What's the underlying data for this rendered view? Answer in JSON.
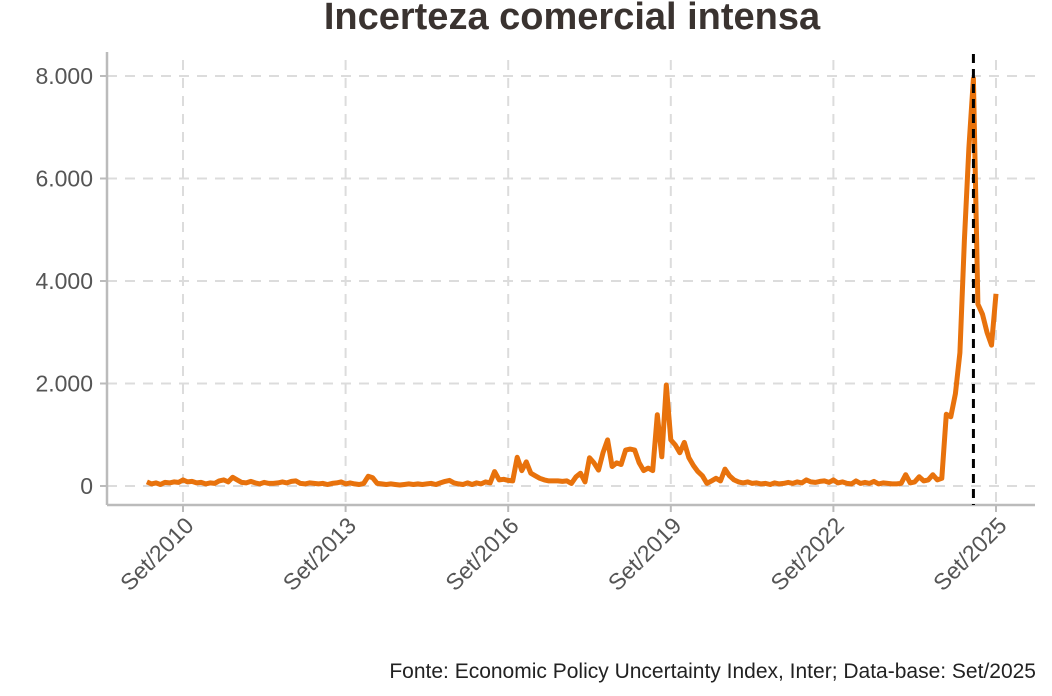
{
  "chart_data": {
    "type": "line",
    "title": "Incerteza comercial intensa",
    "caption": "Fonte: Economic Policy Uncertainty Index, Inter; Data-base: Set/2025",
    "xlabel": "",
    "ylabel": "",
    "x_start": "2010-01",
    "x_end": "2025-09",
    "frequency": "monthly",
    "ylim": [
      0,
      8000
    ],
    "yticks": [
      0,
      2000,
      4000,
      6000,
      8000
    ],
    "ytick_labels": [
      "0",
      "2.000",
      "4.000",
      "6.000",
      "8.000"
    ],
    "xtick_labels": [
      "Set/2010",
      "Set/2013",
      "Set/2016",
      "Set/2019",
      "Set/2022",
      "Set/2025"
    ],
    "xtick_dates": [
      "2010-09",
      "2013-09",
      "2016-09",
      "2019-09",
      "2022-09",
      "2025-09"
    ],
    "vline_date": "2025-04",
    "grid": true,
    "series_color": "#E8720C",
    "vline_color": "#000000",
    "values": [
      80,
      40,
      60,
      30,
      70,
      60,
      80,
      70,
      120,
      80,
      90,
      60,
      70,
      40,
      60,
      50,
      100,
      120,
      80,
      170,
      120,
      70,
      60,
      90,
      60,
      40,
      70,
      50,
      50,
      60,
      80,
      60,
      90,
      100,
      50,
      40,
      60,
      50,
      40,
      50,
      30,
      50,
      60,
      80,
      40,
      60,
      40,
      30,
      50,
      190,
      160,
      50,
      40,
      30,
      40,
      30,
      20,
      30,
      40,
      30,
      40,
      30,
      40,
      50,
      30,
      60,
      90,
      110,
      60,
      40,
      30,
      60,
      30,
      60,
      40,
      80,
      60,
      280,
      120,
      130,
      110,
      100,
      560,
      300,
      470,
      250,
      200,
      150,
      120,
      100,
      100,
      100,
      90,
      100,
      50,
      180,
      250,
      80,
      550,
      450,
      310,
      650,
      900,
      380,
      450,
      420,
      700,
      720,
      700,
      450,
      300,
      350,
      300,
      1390,
      570,
      1970,
      900,
      800,
      650,
      850,
      550,
      400,
      280,
      200,
      50,
      100,
      150,
      100,
      330,
      200,
      120,
      80,
      60,
      80,
      50,
      60,
      40,
      50,
      30,
      60,
      40,
      50,
      70,
      50,
      80,
      60,
      120,
      80,
      70,
      90,
      100,
      70,
      120,
      60,
      80,
      50,
      40,
      100,
      50,
      70,
      50,
      90,
      40,
      60,
      50,
      40,
      40,
      50,
      220,
      60,
      80,
      180,
      100,
      120,
      220,
      120,
      150,
      1400,
      1350,
      1800,
      2600,
      4800,
      6600,
      7950,
      3550,
      3350,
      3000,
      2750,
      3750
    ]
  }
}
